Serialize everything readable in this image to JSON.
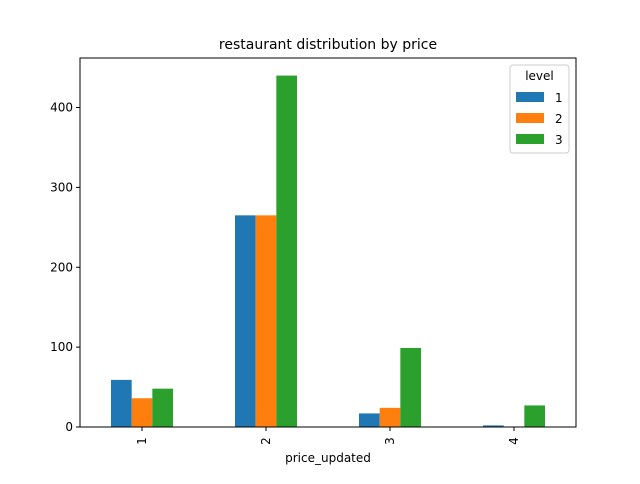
{
  "chart_data": {
    "type": "bar",
    "title": "restaurant distribution by price",
    "xlabel": "price_updated",
    "ylabel": "",
    "categories": [
      "1",
      "2",
      "3",
      "4"
    ],
    "ylim": [
      0,
      462
    ],
    "yticks": [
      0,
      100,
      200,
      300,
      400
    ],
    "grid": false,
    "legend": {
      "title": "level",
      "position": "top-right"
    },
    "series": [
      {
        "name": "1",
        "color": "#1f77b4",
        "values": [
          59,
          265,
          17,
          2
        ]
      },
      {
        "name": "2",
        "color": "#ff7f0e",
        "values": [
          36,
          265,
          24,
          0
        ]
      },
      {
        "name": "3",
        "color": "#2ca02c",
        "values": [
          48,
          440,
          99,
          27
        ]
      }
    ]
  }
}
